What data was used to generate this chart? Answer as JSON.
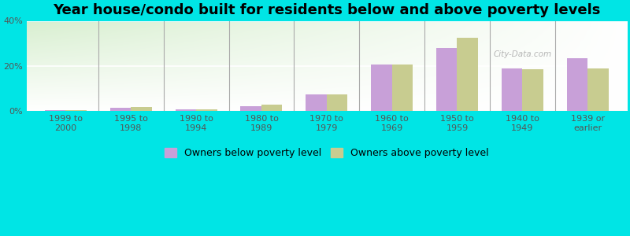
{
  "title": "Year house/condo built for residents below and above poverty levels",
  "categories": [
    "1999 to\n2000",
    "1995 to\n1998",
    "1990 to\n1994",
    "1980 to\n1989",
    "1970 to\n1979",
    "1960 to\n1969",
    "1950 to\n1959",
    "1940 to\n1949",
    "1939 or\nearlier"
  ],
  "below_poverty": [
    0.3,
    1.5,
    0.8,
    2.2,
    7.5,
    20.5,
    28.0,
    19.0,
    23.5
  ],
  "above_poverty": [
    0.3,
    1.8,
    0.7,
    2.8,
    7.2,
    20.5,
    32.5,
    18.5,
    19.0
  ],
  "below_color": "#c8a0d8",
  "above_color": "#c8cc90",
  "outer_background": "#00e5e5",
  "ylim": [
    0,
    40
  ],
  "yticks": [
    0,
    20,
    40
  ],
  "ytick_labels": [
    "0%",
    "20%",
    "40%"
  ],
  "grid_lines": [
    20,
    40
  ],
  "legend_below": "Owners below poverty level",
  "legend_above": "Owners above poverty level",
  "title_fontsize": 13,
  "tick_fontsize": 8,
  "watermark": "City-Data.com"
}
